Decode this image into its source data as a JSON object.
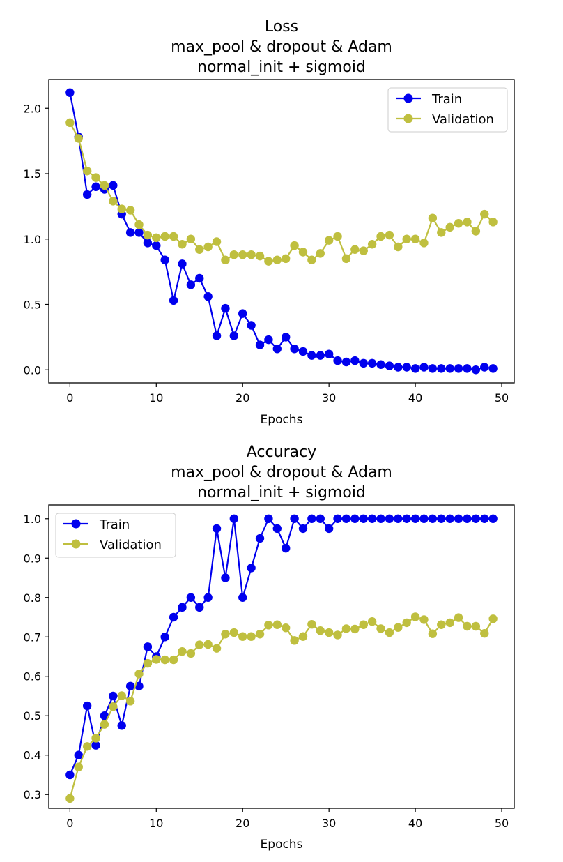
{
  "colors": {
    "train": "#0000ee",
    "validation": "#bfbf3f",
    "axes": "#000000"
  },
  "chart_data": [
    {
      "type": "line",
      "title": [
        "Loss",
        "max_pool & dropout & Adam",
        "normal_init + sigmoid"
      ],
      "xlabel": "Epochs",
      "ylabel": "",
      "xlim": [
        -2.45,
        51.45
      ],
      "ylim": [
        -0.1,
        2.22
      ],
      "xticks": [
        0,
        10,
        20,
        30,
        40,
        50
      ],
      "xtick_labels": [
        "0",
        "10",
        "20",
        "30",
        "40",
        "50"
      ],
      "yticks": [
        0.0,
        0.5,
        1.0,
        1.5,
        2.0
      ],
      "ytick_labels": [
        "0.0",
        "0.5",
        "1.0",
        "1.5",
        "2.0"
      ],
      "legend_position": "top-right",
      "x": [
        0,
        1,
        2,
        3,
        4,
        5,
        6,
        7,
        8,
        9,
        10,
        11,
        12,
        13,
        14,
        15,
        16,
        17,
        18,
        19,
        20,
        21,
        22,
        23,
        24,
        25,
        26,
        27,
        28,
        29,
        30,
        31,
        32,
        33,
        34,
        35,
        36,
        37,
        38,
        39,
        40,
        41,
        42,
        43,
        44,
        45,
        46,
        47,
        48,
        49
      ],
      "series": [
        {
          "name": "Train",
          "color_key": "train",
          "values": [
            2.12,
            1.78,
            1.34,
            1.4,
            1.38,
            1.41,
            1.19,
            1.05,
            1.05,
            0.97,
            0.95,
            0.84,
            0.53,
            0.81,
            0.65,
            0.7,
            0.56,
            0.26,
            0.47,
            0.26,
            0.43,
            0.34,
            0.19,
            0.23,
            0.16,
            0.25,
            0.16,
            0.14,
            0.11,
            0.11,
            0.12,
            0.07,
            0.06,
            0.07,
            0.05,
            0.05,
            0.04,
            0.03,
            0.02,
            0.02,
            0.01,
            0.02,
            0.01,
            0.01,
            0.01,
            0.01,
            0.01,
            0.0,
            0.02,
            0.01
          ]
        },
        {
          "name": "Validation",
          "color_key": "validation",
          "values": [
            1.89,
            1.77,
            1.52,
            1.47,
            1.41,
            1.29,
            1.23,
            1.22,
            1.11,
            1.03,
            1.01,
            1.02,
            1.02,
            0.96,
            1.0,
            0.92,
            0.94,
            0.98,
            0.84,
            0.88,
            0.88,
            0.88,
            0.87,
            0.83,
            0.84,
            0.85,
            0.95,
            0.9,
            0.84,
            0.89,
            0.99,
            1.02,
            0.85,
            0.92,
            0.91,
            0.96,
            1.02,
            1.03,
            0.94,
            1.0,
            1.0,
            0.97,
            1.16,
            1.05,
            1.09,
            1.12,
            1.13,
            1.06,
            1.19,
            1.13
          ]
        }
      ]
    },
    {
      "type": "line",
      "title": [
        "Accuracy",
        "max_pool & dropout & Adam",
        "normal_init + sigmoid"
      ],
      "xlabel": "Epochs",
      "ylabel": "",
      "xlim": [
        -2.45,
        51.45
      ],
      "ylim": [
        0.265,
        1.035
      ],
      "xticks": [
        0,
        10,
        20,
        30,
        40,
        50
      ],
      "xtick_labels": [
        "0",
        "10",
        "20",
        "30",
        "40",
        "50"
      ],
      "yticks": [
        0.3,
        0.4,
        0.5,
        0.6,
        0.7,
        0.8,
        0.9,
        1.0
      ],
      "ytick_labels": [
        "0.3",
        "0.4",
        "0.5",
        "0.6",
        "0.7",
        "0.8",
        "0.9",
        "1.0"
      ],
      "legend_position": "top-left",
      "x": [
        0,
        1,
        2,
        3,
        4,
        5,
        6,
        7,
        8,
        9,
        10,
        11,
        12,
        13,
        14,
        15,
        16,
        17,
        18,
        19,
        20,
        21,
        22,
        23,
        24,
        25,
        26,
        27,
        28,
        29,
        30,
        31,
        32,
        33,
        34,
        35,
        36,
        37,
        38,
        39,
        40,
        41,
        42,
        43,
        44,
        45,
        46,
        47,
        48,
        49
      ],
      "series": [
        {
          "name": "Train",
          "color_key": "train",
          "values": [
            0.35,
            0.4,
            0.525,
            0.425,
            0.5,
            0.55,
            0.475,
            0.575,
            0.575,
            0.675,
            0.65,
            0.7,
            0.75,
            0.775,
            0.8,
            0.775,
            0.8,
            0.975,
            0.85,
            1.0,
            0.8,
            0.875,
            0.95,
            1.0,
            0.975,
            0.925,
            1.0,
            0.975,
            1.0,
            1.0,
            0.975,
            1.0,
            1.0,
            1.0,
            1.0,
            1.0,
            1.0,
            1.0,
            1.0,
            1.0,
            1.0,
            1.0,
            1.0,
            1.0,
            1.0,
            1.0,
            1.0,
            1.0,
            1.0,
            1.0
          ]
        },
        {
          "name": "Validation",
          "color_key": "validation",
          "values": [
            0.29,
            0.37,
            0.422,
            0.443,
            0.478,
            0.523,
            0.551,
            0.537,
            0.606,
            0.633,
            0.643,
            0.642,
            0.642,
            0.663,
            0.658,
            0.68,
            0.681,
            0.671,
            0.707,
            0.711,
            0.701,
            0.701,
            0.707,
            0.73,
            0.731,
            0.723,
            0.691,
            0.701,
            0.732,
            0.716,
            0.711,
            0.705,
            0.721,
            0.72,
            0.731,
            0.739,
            0.721,
            0.711,
            0.724,
            0.736,
            0.751,
            0.744,
            0.708,
            0.731,
            0.736,
            0.749,
            0.727,
            0.727,
            0.709,
            0.746
          ]
        }
      ]
    }
  ]
}
